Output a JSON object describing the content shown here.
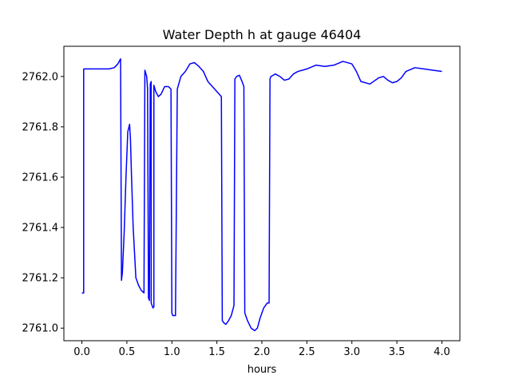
{
  "chart_data": {
    "type": "line",
    "title": "Water Depth h at gauge 46404",
    "xlabel": "hours",
    "ylabel": "",
    "xlim": [
      -0.2,
      4.2
    ],
    "ylim": [
      2760.95,
      2762.12
    ],
    "xticks": [
      0.0,
      0.5,
      1.0,
      1.5,
      2.0,
      2.5,
      3.0,
      3.5,
      4.0
    ],
    "xtick_labels": [
      "0.0",
      "0.5",
      "1.0",
      "1.5",
      "2.0",
      "2.5",
      "3.0",
      "3.5",
      "4.0"
    ],
    "yticks": [
      2761.0,
      2761.2,
      2761.4,
      2761.6,
      2761.8,
      2762.0
    ],
    "ytick_labels": [
      "2761.0",
      "2761.2",
      "2761.4",
      "2761.6",
      "2761.8",
      "2762.0"
    ],
    "grid": false,
    "colors": {
      "line": "#0000ff",
      "axes": "#000000",
      "background": "#ffffff"
    },
    "series": [
      {
        "x": [
          0.0,
          0.02,
          0.02,
          0.1,
          0.2,
          0.3,
          0.36,
          0.4,
          0.43,
          0.44,
          0.45,
          0.47,
          0.49,
          0.51,
          0.53,
          0.54,
          0.55,
          0.57,
          0.6,
          0.63,
          0.66,
          0.69,
          0.7,
          0.72,
          0.73,
          0.74,
          0.74,
          0.75,
          0.76,
          0.77,
          0.77,
          0.78,
          0.79,
          0.8,
          0.8,
          0.82,
          0.85,
          0.88,
          0.92,
          0.96,
          0.99,
          1.0,
          1.01,
          1.02,
          1.04,
          1.06,
          1.1,
          1.15,
          1.2,
          1.25,
          1.3,
          1.35,
          1.4,
          1.45,
          1.5,
          1.55,
          1.56,
          1.58,
          1.6,
          1.63,
          1.66,
          1.69,
          1.7,
          1.72,
          1.75,
          1.78,
          1.8,
          1.81,
          1.84,
          1.88,
          1.92,
          1.95,
          1.98,
          2.02,
          2.06,
          2.08,
          2.09,
          2.1,
          2.15,
          2.2,
          2.25,
          2.3,
          2.35,
          2.4,
          2.5,
          2.6,
          2.7,
          2.8,
          2.9,
          3.0,
          3.05,
          3.1,
          3.2,
          3.3,
          3.35,
          3.4,
          3.45,
          3.5,
          3.55,
          3.6,
          3.7,
          3.8,
          3.9,
          4.0
        ],
        "y": [
          2761.14,
          2761.14,
          2762.03,
          2762.03,
          2762.03,
          2762.03,
          2762.035,
          2762.05,
          2762.07,
          2761.19,
          2761.22,
          2761.38,
          2761.6,
          2761.78,
          2761.81,
          2761.75,
          2761.62,
          2761.4,
          2761.2,
          2761.17,
          2761.15,
          2761.14,
          2762.025,
          2762.0,
          2761.95,
          2761.12,
          2761.12,
          2761.11,
          2761.97,
          2761.98,
          2761.1,
          2761.09,
          2761.08,
          2761.085,
          2761.965,
          2761.94,
          2761.92,
          2761.93,
          2761.96,
          2761.96,
          2761.95,
          2761.06,
          2761.05,
          2761.05,
          2761.05,
          2761.95,
          2762.0,
          2762.02,
          2762.05,
          2762.055,
          2762.04,
          2762.02,
          2761.98,
          2761.96,
          2761.94,
          2761.92,
          2761.03,
          2761.02,
          2761.015,
          2761.03,
          2761.05,
          2761.09,
          2761.99,
          2762.0,
          2762.005,
          2761.98,
          2761.96,
          2761.06,
          2761.03,
          2761.0,
          2760.99,
          2761.0,
          2761.04,
          2761.08,
          2761.1,
          2761.1,
          2761.99,
          2762.0,
          2762.01,
          2762.0,
          2761.985,
          2761.99,
          2762.01,
          2762.02,
          2762.03,
          2762.045,
          2762.04,
          2762.045,
          2762.06,
          2762.05,
          2762.02,
          2761.98,
          2761.97,
          2761.995,
          2762.0,
          2761.985,
          2761.975,
          2761.98,
          2761.995,
          2762.02,
          2762.035,
          2762.03,
          2762.025,
          2762.02
        ]
      }
    ]
  }
}
